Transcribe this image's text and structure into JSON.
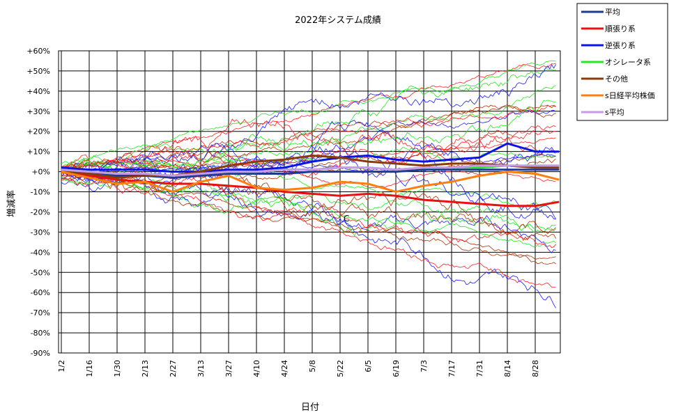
{
  "chart_data": {
    "type": "line",
    "title": "2022年システム成績",
    "xlabel": "日付",
    "ylabel": "増減率",
    "x_ticks": [
      "1/2",
      "1/16",
      "1/30",
      "2/13",
      "2/27",
      "3/13",
      "3/27",
      "4/10",
      "4/24",
      "5/8",
      "5/22",
      "6/5",
      "6/19",
      "7/3",
      "7/17",
      "7/31",
      "8/14",
      "8/28"
    ],
    "y_ticks": [
      "+60%",
      "+50%",
      "+40%",
      "+30%",
      "+20%",
      "+10%",
      "+0%",
      "-10%",
      "-20%",
      "-30%",
      "-40%",
      "-50%",
      "-60%",
      "-70%",
      "-80%",
      "-90%"
    ],
    "ylim": [
      -90,
      60
    ],
    "grid": true,
    "legend_position": "top-right",
    "annotation": "C",
    "series": [
      {
        "name": "平均",
        "color": "#1f3a93",
        "x": [
          "1/2",
          "1/16",
          "1/30",
          "2/13",
          "2/27",
          "3/13",
          "3/27",
          "4/10",
          "4/24",
          "5/8",
          "5/22",
          "6/5",
          "6/19",
          "7/3",
          "7/17",
          "7/31",
          "8/14",
          "8/28",
          "9/9"
        ],
        "values": [
          0,
          -1,
          -2,
          -2,
          -3,
          -2,
          -1,
          -1,
          -1,
          0,
          0,
          0,
          0,
          1,
          1,
          1,
          1,
          1,
          1
        ]
      },
      {
        "name": "順張り系",
        "color": "#e81010",
        "x": [
          "1/2",
          "1/16",
          "1/30",
          "2/13",
          "2/27",
          "3/13",
          "3/27",
          "4/10",
          "4/24",
          "5/8",
          "5/22",
          "6/5",
          "6/19",
          "7/3",
          "7/17",
          "7/31",
          "8/14",
          "8/28",
          "9/9"
        ],
        "values": [
          0,
          -2,
          -4,
          -5,
          -6,
          -6,
          -7,
          -8,
          -10,
          -11,
          -12,
          -11,
          -12,
          -14,
          -15,
          -16,
          -17,
          -17,
          -15
        ]
      },
      {
        "name": "逆張り系",
        "color": "#0a14e6",
        "x": [
          "1/2",
          "1/16",
          "1/30",
          "2/13",
          "2/27",
          "3/13",
          "3/27",
          "4/10",
          "4/24",
          "5/8",
          "5/22",
          "6/5",
          "6/19",
          "7/3",
          "7/17",
          "7/31",
          "8/14",
          "8/28",
          "9/9"
        ],
        "values": [
          2,
          1,
          1,
          1,
          0,
          0,
          1,
          1,
          2,
          5,
          7,
          8,
          6,
          5,
          6,
          7,
          14,
          10,
          10
        ]
      },
      {
        "name": "オシレータ系",
        "color": "#22e822",
        "x": [
          "1/2",
          "1/16",
          "1/30",
          "2/13",
          "2/27",
          "3/13",
          "3/27",
          "4/10",
          "4/24",
          "5/8",
          "5/22",
          "6/5",
          "6/19",
          "7/3",
          "7/17",
          "7/31",
          "8/14",
          "8/28",
          "9/9"
        ],
        "values": [
          1,
          0,
          -1,
          -1,
          -2,
          -1,
          0,
          0,
          1,
          1,
          2,
          2,
          1,
          2,
          2,
          2,
          3,
          3,
          3
        ]
      },
      {
        "name": "その他",
        "color": "#8b3a0e",
        "x": [
          "1/2",
          "1/16",
          "1/30",
          "2/13",
          "2/27",
          "3/13",
          "3/27",
          "4/10",
          "4/24",
          "5/8",
          "5/22",
          "6/5",
          "6/19",
          "7/3",
          "7/17",
          "7/31",
          "8/14",
          "8/28",
          "9/9"
        ],
        "values": [
          0,
          -1,
          -3,
          -2,
          -2,
          0,
          3,
          5,
          6,
          8,
          7,
          5,
          4,
          3,
          4,
          4,
          3,
          2,
          2
        ]
      },
      {
        "name": "s日経平均株価",
        "color": "#ff7f0e",
        "x": [
          "1/2",
          "1/16",
          "1/30",
          "2/13",
          "2/27",
          "3/13",
          "3/27",
          "4/10",
          "4/24",
          "5/8",
          "5/22",
          "6/5",
          "6/19",
          "7/3",
          "7/17",
          "7/31",
          "8/14",
          "8/28",
          "9/9"
        ],
        "values": [
          0,
          -3,
          -6,
          -5,
          -10,
          -5,
          -2,
          -8,
          -9,
          -8,
          -5,
          -6,
          -10,
          -7,
          -5,
          -2,
          0,
          -1,
          -4
        ]
      },
      {
        "name": "s平均",
        "color": "#c79ae8",
        "x": [
          "1/2",
          "1/16",
          "1/30",
          "2/13",
          "2/27",
          "3/13",
          "3/27",
          "4/10",
          "4/24",
          "5/8",
          "5/22",
          "6/5",
          "6/19",
          "7/3",
          "7/17",
          "7/31",
          "8/14",
          "8/28",
          "9/9"
        ],
        "values": [
          1,
          0,
          -1,
          -1,
          -2,
          -1,
          0,
          0,
          1,
          1,
          2,
          2,
          1,
          2,
          2,
          3,
          3,
          3,
          3
        ]
      }
    ]
  }
}
